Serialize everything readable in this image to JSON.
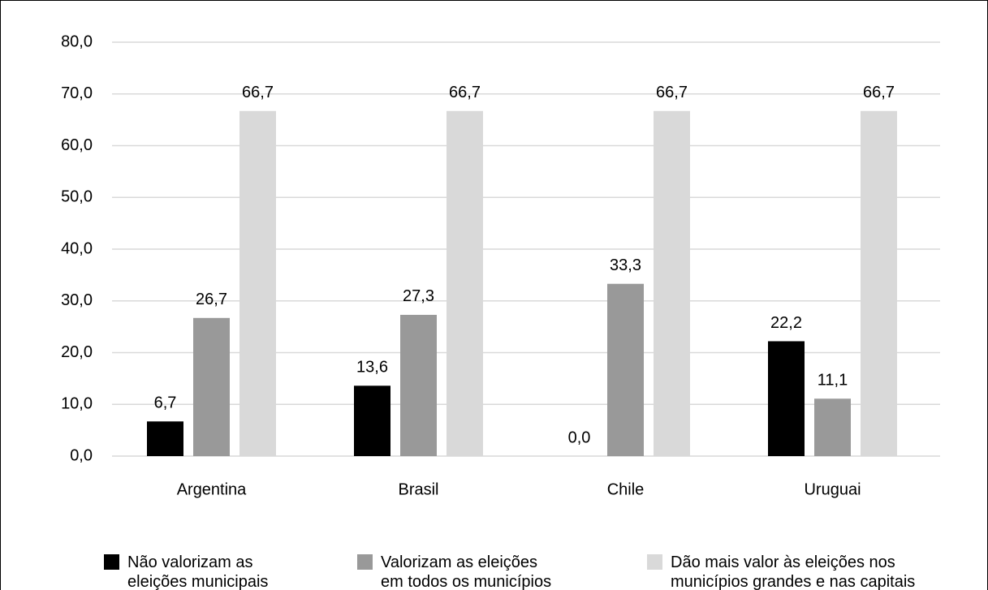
{
  "chart_data": {
    "type": "bar",
    "categories": [
      "Argentina",
      "Brasil",
      "Chile",
      "Uruguai"
    ],
    "series": [
      {
        "name": "Não valorizam as\neleições municipais",
        "color": "#000000",
        "values": [
          6.7,
          13.6,
          0.0,
          22.2
        ],
        "value_labels": [
          "6,7",
          "13,6",
          "0,0",
          "22,2"
        ]
      },
      {
        "name": "Valorizam as eleições\nem todos os municípios",
        "color": "#999999",
        "values": [
          26.7,
          27.3,
          33.3,
          11.1
        ],
        "value_labels": [
          "26,7",
          "27,3",
          "33,3",
          "11,1"
        ]
      },
      {
        "name": "Dão mais valor às eleições nos\nmunicípios grandes e nas capitais",
        "color": "#d9d9d9",
        "values": [
          66.7,
          66.7,
          66.7,
          66.7
        ],
        "value_labels": [
          "66,7",
          "66,7",
          "66,7",
          "66,7"
        ]
      }
    ],
    "ylim": [
      0,
      80
    ],
    "yticks": [
      {
        "value": 0,
        "label": "0,0"
      },
      {
        "value": 10,
        "label": "10,0"
      },
      {
        "value": 20,
        "label": "20,0"
      },
      {
        "value": 30,
        "label": "30,0"
      },
      {
        "value": 40,
        "label": "40,0"
      },
      {
        "value": 50,
        "label": "50,0"
      },
      {
        "value": 60,
        "label": "60,0"
      },
      {
        "value": 70,
        "label": "70,0"
      },
      {
        "value": 80,
        "label": "80,0"
      }
    ],
    "grid": true,
    "legend": "bottom"
  }
}
